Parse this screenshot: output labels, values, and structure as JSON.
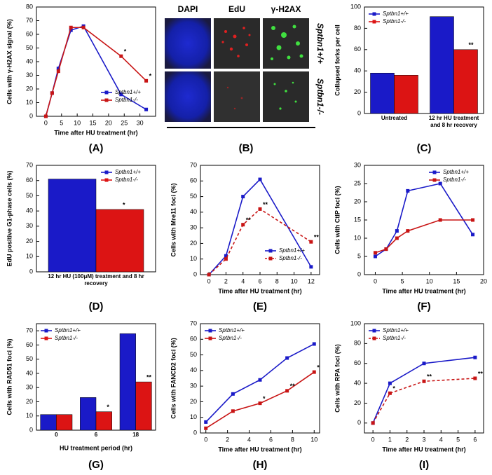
{
  "chart_data": [
    {
      "panel": "(A)",
      "type": "line",
      "x_label": "Time after HU treatment (hr)",
      "y_label": "Cells with γ-H2AX signal (%)",
      "x": [
        0,
        2,
        4,
        8,
        12,
        24,
        32
      ],
      "xlim": [
        -3,
        35
      ],
      "xticks": [
        0,
        5,
        10,
        15,
        20,
        25,
        30
      ],
      "ylim": [
        0,
        80
      ],
      "yticks": [
        0,
        10,
        20,
        30,
        40,
        50,
        60,
        70,
        80
      ],
      "legend": "lower right",
      "series": [
        {
          "name": "Sptbn1+/+",
          "color": "#1a1ac8",
          "line_style": "solid",
          "values": [
            0,
            17,
            35,
            63,
            66,
            16,
            5
          ]
        },
        {
          "name": "Sptbn1-/-",
          "color": "#c81414",
          "line_style": "solid",
          "values": [
            0,
            17,
            33,
            65,
            65,
            44,
            26
          ],
          "annotations": [
            null,
            null,
            null,
            null,
            null,
            "*",
            "*"
          ]
        }
      ]
    },
    {
      "panel": "(C)",
      "type": "bar",
      "y_label": "Collapsed forks per cell",
      "categories": [
        "Untreated",
        "12 hr HU treatment and 8 hr recovery"
      ],
      "ylim": [
        0,
        100
      ],
      "yticks": [
        0,
        20,
        40,
        60,
        80,
        100
      ],
      "legend": "upper left",
      "series": [
        {
          "name": "Sptbn1+/+",
          "color": "#1a1ac8",
          "values": [
            38,
            91
          ]
        },
        {
          "name": "Sptbn1-/-",
          "color": "#dc1414",
          "values": [
            36,
            60
          ],
          "annotations": [
            null,
            "**"
          ]
        }
      ]
    },
    {
      "panel": "(D)",
      "type": "bar",
      "y_label": "EdU positive G1-phase cells (%)",
      "categories": [
        "12 hr HU (100μM) treatment and 8 hr recovery"
      ],
      "ylim": [
        0,
        70
      ],
      "yticks": [
        0,
        10,
        20,
        30,
        40,
        50,
        60,
        70
      ],
      "legend": "upper right",
      "series": [
        {
          "name": "Sptbn1+/+",
          "color": "#1a1ac8",
          "values": [
            61
          ]
        },
        {
          "name": "Sptbn1-/-",
          "color": "#dc1414",
          "values": [
            41
          ],
          "annotations": [
            "*"
          ]
        }
      ]
    },
    {
      "panel": "(E)",
      "type": "line",
      "x_label": "Time after HU treatment (hr)",
      "y_label": "Cells with Mre11 foci (%)",
      "x": [
        0,
        2,
        4,
        6,
        12
      ],
      "xlim": [
        -1,
        13
      ],
      "xticks": [
        0,
        2,
        4,
        6,
        8,
        10,
        12
      ],
      "ylim": [
        0,
        70
      ],
      "yticks": [
        0,
        10,
        20,
        30,
        40,
        50,
        60,
        70
      ],
      "legend": "lower right",
      "series": [
        {
          "name": "Sptbn1+/+",
          "color": "#1a1ac8",
          "line_style": "solid",
          "values": [
            0,
            12,
            50,
            61,
            5
          ]
        },
        {
          "name": "Sptbn1-/-",
          "color": "#c81414",
          "line_style": "dashed",
          "values": [
            0,
            10,
            32,
            42,
            21
          ],
          "annotations": [
            null,
            null,
            "**",
            "**",
            "**"
          ]
        }
      ]
    },
    {
      "panel": "(F)",
      "type": "line",
      "x_label": "Time after HU treatment (hr)",
      "y_label": "Cells with CtIP foci (%)",
      "x": [
        0,
        2,
        4,
        6,
        12,
        18
      ],
      "xlim": [
        -2,
        20
      ],
      "xticks": [
        0,
        5,
        10,
        15,
        20
      ],
      "ylim": [
        0,
        30
      ],
      "yticks": [
        0,
        5,
        10,
        15,
        20,
        25,
        30
      ],
      "legend": "upper right",
      "series": [
        {
          "name": "Sptbn1+/+",
          "color": "#1a1ac8",
          "line_style": "solid",
          "values": [
            5,
            7,
            12,
            23,
            25,
            11
          ]
        },
        {
          "name": "Sptbn1-/-",
          "color": "#c81414",
          "line_style": "solid",
          "values": [
            6,
            7,
            10,
            12,
            15,
            15
          ]
        }
      ]
    },
    {
      "panel": "(G)",
      "type": "bar",
      "x_label": "HU treatment period (hr)",
      "y_label": "Cells with RAD51 foci (%)",
      "categories": [
        "0",
        "6",
        "18"
      ],
      "ylim": [
        0,
        75
      ],
      "yticks": [
        0,
        10,
        20,
        30,
        40,
        50,
        60,
        70
      ],
      "legend": "upper left",
      "series": [
        {
          "name": "Sptbn1+/+",
          "color": "#1a1ac8",
          "values": [
            11,
            23,
            68
          ]
        },
        {
          "name": "Sptbn1-/-",
          "color": "#dc1414",
          "values": [
            11,
            13,
            34
          ],
          "annotations": [
            null,
            "*",
            "**"
          ]
        }
      ]
    },
    {
      "panel": "(H)",
      "type": "line",
      "x_label": "Time after HU treatment (hr)",
      "y_label": "Cells with FANCD2 foci (%)",
      "x": [
        0,
        2.5,
        5,
        7.5,
        10
      ],
      "xlim": [
        -0.5,
        10.5
      ],
      "xticks": [
        0,
        2,
        4,
        6,
        8,
        10
      ],
      "ylim": [
        0,
        70
      ],
      "yticks": [
        0,
        10,
        20,
        30,
        40,
        50,
        60,
        70
      ],
      "legend": "upper left",
      "series": [
        {
          "name": "Sptbn1+/+",
          "color": "#1a1ac8",
          "line_style": "solid",
          "values": [
            7,
            25,
            34,
            48,
            57
          ]
        },
        {
          "name": "Sptbn1-/-",
          "color": "#c81414",
          "line_style": "solid",
          "values": [
            3,
            14,
            19,
            27,
            39
          ],
          "annotations": [
            null,
            null,
            "*",
            "**",
            "*"
          ]
        }
      ]
    },
    {
      "panel": "(I)",
      "type": "line",
      "x_label": "Time after HU treatment (hr)",
      "y_label": "Cells with RPA foci (%)",
      "x": [
        0,
        1,
        3,
        6
      ],
      "xlim": [
        -0.5,
        6.5
      ],
      "xticks": [
        0,
        1,
        2,
        3,
        4,
        5,
        6
      ],
      "ylim": [
        -10,
        100
      ],
      "yticks": [
        0,
        20,
        40,
        60,
        80,
        100
      ],
      "legend": "upper left",
      "series": [
        {
          "name": "Sptbn1+/+",
          "color": "#1a1ac8",
          "line_style": "solid",
          "values": [
            0,
            40,
            60,
            66
          ]
        },
        {
          "name": "Sptbn1-/-",
          "color": "#c81414",
          "line_style": "dashed",
          "values": [
            0,
            30,
            42,
            45
          ],
          "annotations": [
            null,
            "*",
            "**",
            "**"
          ]
        }
      ]
    }
  ],
  "image_panel": {
    "panel": "(B)",
    "columns": [
      "DAPI",
      "EdU",
      "γ-H2AX"
    ],
    "rows": [
      "Sptbn1+/+",
      "Sptbn1-/-"
    ]
  }
}
